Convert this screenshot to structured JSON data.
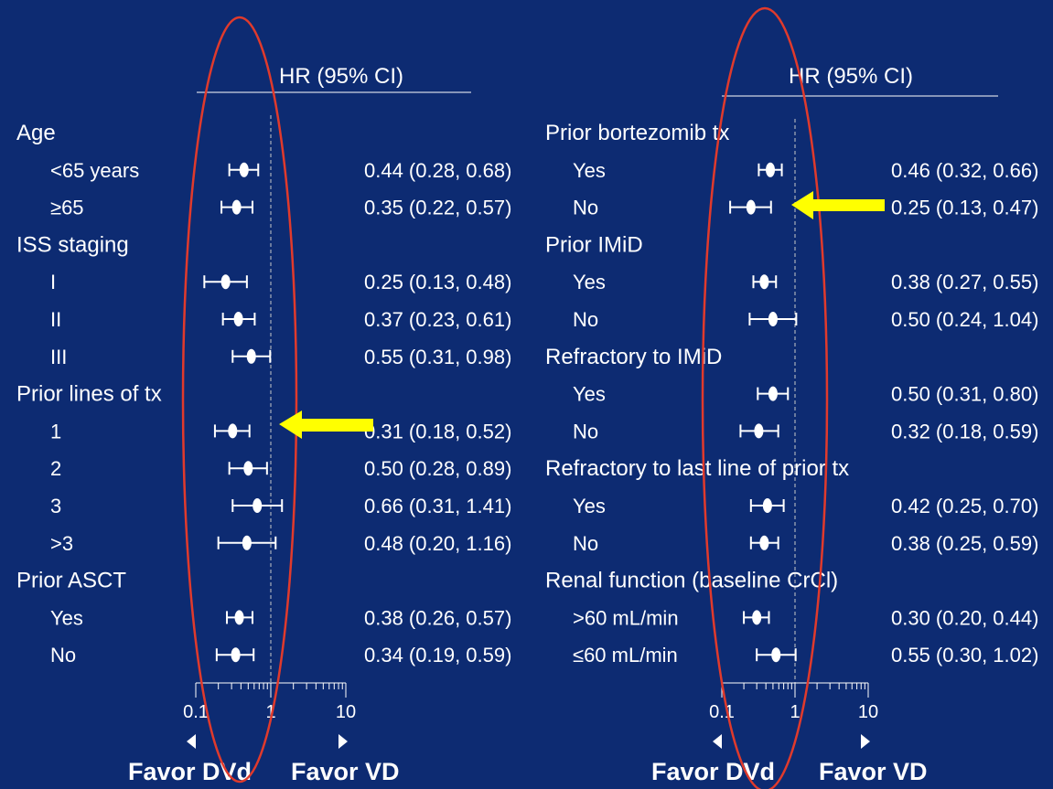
{
  "colors": {
    "background": "#0d2b72",
    "text": "#ffffff",
    "ellipse": "#e03a2c",
    "arrow": "#ffff00",
    "reference_line": "#c8c8c8"
  },
  "chart_data": [
    {
      "type": "forest",
      "header": "HR (95% CI)",
      "x_scale": "log",
      "xlim": [
        0.1,
        10
      ],
      "x_ticks": [
        "0.1",
        "1",
        "10"
      ],
      "reference_x": 1,
      "favor_left": "Favor DVd",
      "favor_right": "Favor VD",
      "rows": [
        {
          "label": "Age",
          "group": true
        },
        {
          "label": "<65 years",
          "hr": 0.44,
          "lo": 0.28,
          "hi": 0.68,
          "text": "0.44 (0.28, 0.68)"
        },
        {
          "label": "≥65",
          "hr": 0.35,
          "lo": 0.22,
          "hi": 0.57,
          "text": "0.35 (0.22, 0.57)"
        },
        {
          "label": "ISS staging",
          "group": true
        },
        {
          "label": "I",
          "hr": 0.25,
          "lo": 0.13,
          "hi": 0.48,
          "text": "0.25 (0.13, 0.48)"
        },
        {
          "label": "II",
          "hr": 0.37,
          "lo": 0.23,
          "hi": 0.61,
          "text": "0.37 (0.23, 0.61)"
        },
        {
          "label": "III",
          "hr": 0.55,
          "lo": 0.31,
          "hi": 0.98,
          "text": "0.55 (0.31, 0.98)"
        },
        {
          "label": "Prior lines of tx",
          "group": true
        },
        {
          "label": "1",
          "hr": 0.31,
          "lo": 0.18,
          "hi": 0.52,
          "text": "0.31 (0.18, 0.52)"
        },
        {
          "label": "2",
          "hr": 0.5,
          "lo": 0.28,
          "hi": 0.89,
          "text": "0.50 (0.28, 0.89)"
        },
        {
          "label": "3",
          "hr": 0.66,
          "lo": 0.31,
          "hi": 1.41,
          "text": "0.66 (0.31, 1.41)"
        },
        {
          "label": ">3",
          "hr": 0.48,
          "lo": 0.2,
          "hi": 1.16,
          "text": "0.48 (0.20, 1.16)"
        },
        {
          "label": "Prior ASCT",
          "group": true
        },
        {
          "label": "Yes",
          "hr": 0.38,
          "lo": 0.26,
          "hi": 0.57,
          "text": "0.38 (0.26, 0.57)"
        },
        {
          "label": "No",
          "hr": 0.34,
          "lo": 0.19,
          "hi": 0.59,
          "text": "0.34 (0.19, 0.59)"
        }
      ]
    },
    {
      "type": "forest",
      "header": "HR (95% CI)",
      "x_scale": "log",
      "xlim": [
        0.1,
        10
      ],
      "x_ticks": [
        "0.1",
        "1",
        "10"
      ],
      "reference_x": 1,
      "favor_left": "Favor DVd",
      "favor_right": "Favor VD",
      "rows": [
        {
          "label": "Prior bortezomib tx",
          "group": true
        },
        {
          "label": "Yes",
          "hr": 0.46,
          "lo": 0.32,
          "hi": 0.66,
          "text": "0.46 (0.32, 0.66)"
        },
        {
          "label": "No",
          "hr": 0.25,
          "lo": 0.13,
          "hi": 0.47,
          "text": "0.25 (0.13, 0.47)"
        },
        {
          "label": "Prior IMiD",
          "group": true
        },
        {
          "label": "Yes",
          "hr": 0.38,
          "lo": 0.27,
          "hi": 0.55,
          "text": "0.38 (0.27, 0.55)"
        },
        {
          "label": "No",
          "hr": 0.5,
          "lo": 0.24,
          "hi": 1.04,
          "text": "0.50 (0.24, 1.04)"
        },
        {
          "label": "Refractory to IMiD",
          "group": true
        },
        {
          "label": "Yes",
          "hr": 0.5,
          "lo": 0.31,
          "hi": 0.8,
          "text": "0.50 (0.31, 0.80)"
        },
        {
          "label": "No",
          "hr": 0.32,
          "lo": 0.18,
          "hi": 0.59,
          "text": "0.32 (0.18, 0.59)"
        },
        {
          "label": "Refractory to last line of prior tx",
          "group": true
        },
        {
          "label": "Yes",
          "hr": 0.42,
          "lo": 0.25,
          "hi": 0.7,
          "text": "0.42 (0.25, 0.70)"
        },
        {
          "label": "No",
          "hr": 0.38,
          "lo": 0.25,
          "hi": 0.59,
          "text": "0.38 (0.25, 0.59)"
        },
        {
          "label": "Renal function (baseline CrCl)",
          "group": true
        },
        {
          "label": ">60 mL/min",
          "hr": 0.3,
          "lo": 0.2,
          "hi": 0.44,
          "text": "0.30 (0.20, 0.44)"
        },
        {
          "label": "≤60 mL/min",
          "hr": 0.55,
          "lo": 0.3,
          "hi": 1.02,
          "text": "0.55 (0.30, 1.02)"
        }
      ]
    }
  ]
}
